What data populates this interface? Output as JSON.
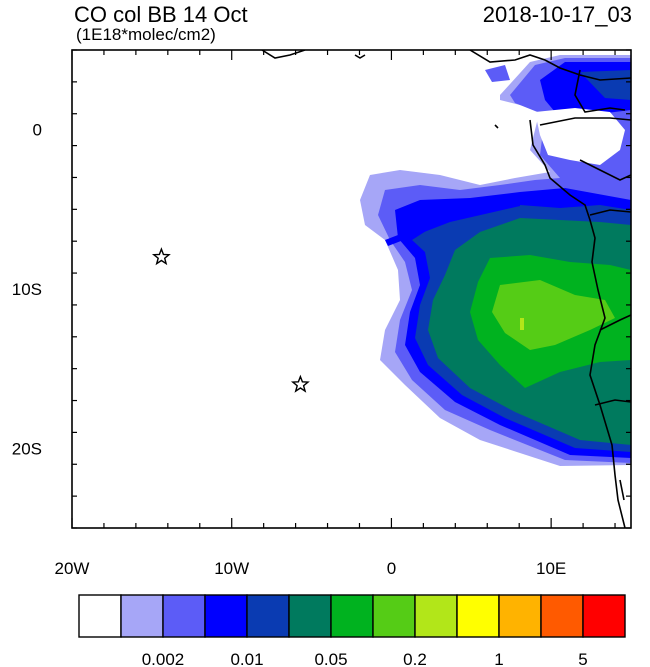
{
  "title": "CO col BB 14 Oct",
  "subtitle": "(1E18*molec/cm2)",
  "valid_time": "2018-10-17_03",
  "map": {
    "lon_range": [
      -20,
      15
    ],
    "lat_range": [
      -25,
      5
    ],
    "x_ticks": [
      {
        "lon": -20,
        "label": "20W"
      },
      {
        "lon": -10,
        "label": "10W"
      },
      {
        "lon": 0,
        "label": "0"
      },
      {
        "lon": 10,
        "label": "10E"
      }
    ],
    "y_ticks": [
      {
        "lat": 0,
        "label": "0"
      },
      {
        "lat": -10,
        "label": "10S"
      },
      {
        "lat": -20,
        "label": "20S"
      }
    ],
    "markers": [
      {
        "name": "star-marker-1",
        "lon": -14.4,
        "lat": -8.0
      },
      {
        "name": "star-marker-2",
        "lon": -5.7,
        "lat": -16.0
      }
    ]
  },
  "colorbar": {
    "colors": [
      "#ffffff",
      "#a6a6f7",
      "#5c5cf7",
      "#0000ff",
      "#0a3bb2",
      "#007a5e",
      "#00b21f",
      "#55cc16",
      "#b2e619",
      "#ffff00",
      "#ffb300",
      "#ff5a00",
      "#ff0000"
    ],
    "labels": [
      {
        "after_box": 2,
        "text": "0.002"
      },
      {
        "after_box": 4,
        "text": "0.01"
      },
      {
        "after_box": 6,
        "text": "0.05"
      },
      {
        "after_box": 8,
        "text": "0.2"
      },
      {
        "after_box": 10,
        "text": "1"
      },
      {
        "after_box": 12,
        "text": "5"
      }
    ]
  }
}
